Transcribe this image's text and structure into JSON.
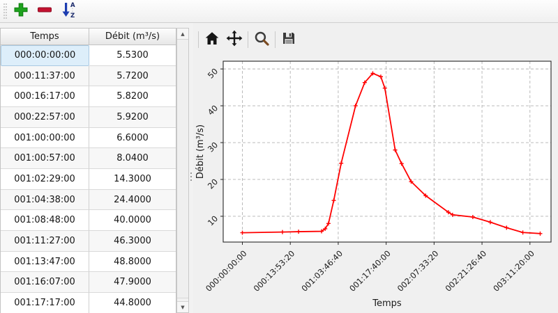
{
  "toolbar": {
    "buttons": [
      {
        "name": "add-row",
        "icon": "plus-icon"
      },
      {
        "name": "remove-row",
        "icon": "minus-icon"
      },
      {
        "name": "sort-rows",
        "icon": "sort-az-icon"
      }
    ]
  },
  "table": {
    "columns": [
      "Temps",
      "Débit (m³/s)"
    ],
    "selected_cell": {
      "row": 0,
      "column": 0
    },
    "rows": [
      [
        "000:00:00:00",
        "5.5300"
      ],
      [
        "000:11:37:00",
        "5.7200"
      ],
      [
        "000:16:17:00",
        "5.8200"
      ],
      [
        "000:22:57:00",
        "5.9200"
      ],
      [
        "001:00:00:00",
        "6.6000"
      ],
      [
        "001:00:57:00",
        "8.0400"
      ],
      [
        "001:02:29:00",
        "14.3000"
      ],
      [
        "001:04:38:00",
        "24.4000"
      ],
      [
        "001:08:48:00",
        "40.0000"
      ],
      [
        "001:11:27:00",
        "46.3000"
      ],
      [
        "001:13:47:00",
        "48.8000"
      ],
      [
        "001:16:07:00",
        "47.9000"
      ],
      [
        "001:17:17:00",
        "44.8000"
      ]
    ]
  },
  "chart_toolbar": {
    "buttons": [
      {
        "name": "home",
        "icon": "home-icon"
      },
      {
        "name": "pan",
        "icon": "pan-icon"
      },
      {
        "name": "zoom",
        "icon": "magnifier-icon"
      },
      {
        "name": "save",
        "icon": "save-icon"
      }
    ]
  },
  "chart_data": {
    "type": "line",
    "title": "",
    "xlabel": "Temps",
    "ylabel": "Débit (m³/s)",
    "line_color": "#ff0000",
    "marker": "+",
    "grid": true,
    "grid_style": "dashed",
    "x_unit": "seconds shown as DDD:HH:MM:SS",
    "xlim": [
      -20000,
      322000
    ],
    "ylim": [
      3.0,
      52.1
    ],
    "xticks": {
      "values": [
        0,
        50000,
        100000,
        150000,
        200000,
        250000,
        300000
      ],
      "labels": [
        "000:00:00:00",
        "000:13:53:20",
        "001:03:46:40",
        "001:17:40:00",
        "002:07:33:20",
        "002:21:26:40",
        "003:11:20:00"
      ]
    },
    "yticks": [
      10,
      20,
      30,
      40,
      50
    ],
    "points": [
      {
        "t": "000:00:00:00",
        "seconds": 0,
        "value": 5.53
      },
      {
        "t": "000:11:37:00",
        "seconds": 41820,
        "value": 5.72
      },
      {
        "t": "000:16:17:00",
        "seconds": 58620,
        "value": 5.82
      },
      {
        "t": "000:22:57:00",
        "seconds": 82620,
        "value": 5.92
      },
      {
        "t": "001:00:00:00",
        "seconds": 86400,
        "value": 6.6
      },
      {
        "t": "001:00:57:00",
        "seconds": 89820,
        "value": 8.04
      },
      {
        "t": "001:02:29:00",
        "seconds": 95340,
        "value": 14.3
      },
      {
        "t": "001:04:38:00",
        "seconds": 103080,
        "value": 24.4
      },
      {
        "t": "001:08:48:00",
        "seconds": 118080,
        "value": 40.0
      },
      {
        "t": "001:11:27:00",
        "seconds": 127620,
        "value": 46.3
      },
      {
        "t": "001:13:47:00",
        "seconds": 136020,
        "value": 48.8
      },
      {
        "t": "001:16:07:00",
        "seconds": 144420,
        "value": 47.9
      },
      {
        "t": "001:17:17:00",
        "seconds": 148620,
        "value": 44.8
      },
      {
        "t": "001:20:16:40",
        "seconds": 159400,
        "value": 28.0,
        "estimated": true
      },
      {
        "t": "001:22:08:20",
        "seconds": 166100,
        "value": 24.3,
        "estimated": true
      },
      {
        "t": "002:00:55:00",
        "seconds": 176100,
        "value": 19.4,
        "estimated": true
      },
      {
        "t": "002:05:06:40",
        "seconds": 191200,
        "value": 15.6,
        "estimated": true
      },
      {
        "t": "002:11:41:40",
        "seconds": 214900,
        "value": 11.1,
        "estimated": true
      },
      {
        "t": "002:12:55:00",
        "seconds": 219300,
        "value": 10.4,
        "estimated": true
      },
      {
        "t": "002:18:46:40",
        "seconds": 240400,
        "value": 9.8,
        "estimated": true
      },
      {
        "t": "002:23:50:00",
        "seconds": 258600,
        "value": 8.4,
        "estimated": true
      },
      {
        "t": "003:04:33:20",
        "seconds": 275600,
        "value": 6.9,
        "estimated": true
      },
      {
        "t": "003:09:16:40",
        "seconds": 292600,
        "value": 5.6,
        "estimated": true
      },
      {
        "t": "003:14:18:20",
        "seconds": 310700,
        "value": 5.3,
        "estimated": true
      }
    ]
  }
}
